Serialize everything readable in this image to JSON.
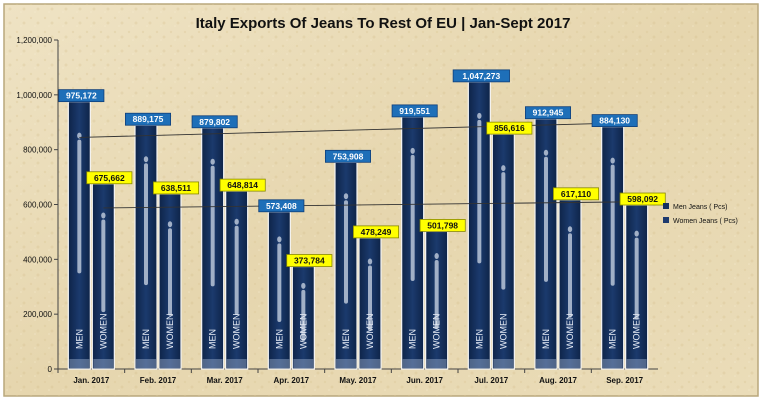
{
  "colors": {
    "men": "#14305f",
    "women": "#1d3a6e",
    "men_label_bg": "#1e6fb8",
    "women_label_bg": "#ffff00",
    "background": "#eadcb8"
  },
  "chart_data": {
    "type": "bar",
    "title": "Italy Exports Of Jeans To Rest Of EU | Jan-Sept 2017",
    "xlabel": "",
    "ylabel": "",
    "categories": [
      "Jan. 2017",
      "Feb. 2017",
      "Mar. 2017",
      "Apr. 2017",
      "May. 2017",
      "Jun. 2017",
      "Jul. 2017",
      "Aug. 2017",
      "Sep. 2017"
    ],
    "series": [
      {
        "name": "Men Jeans ( Pcs)",
        "values": [
          975172,
          889175,
          879802,
          573408,
          753908,
          919551,
          1047273,
          912945,
          884130
        ],
        "labels": [
          "975,172",
          "889,175",
          "879,802",
          "573,408",
          "753,908",
          "919,551",
          "1,047,273",
          "912,945",
          "884,130"
        ]
      },
      {
        "name": "Women Jeans ( Pcs)",
        "values": [
          675662,
          638511,
          648814,
          373784,
          478249,
          501798,
          856616,
          617110,
          598092
        ],
        "labels": [
          "675,662",
          "638,511",
          "648,814",
          "373,784",
          "478,249",
          "501,798",
          "856,616",
          "617,110",
          "598,092"
        ]
      }
    ],
    "ylim": [
      0,
      1200000
    ],
    "yticks": [
      "0",
      "200,000",
      "400,000",
      "600,000",
      "800,000",
      "1,000,000",
      "1,200,000"
    ],
    "trendlines": true,
    "grid": false,
    "legend": "right",
    "bar_text": {
      "men": "MEN",
      "women": "WOMEN"
    }
  }
}
